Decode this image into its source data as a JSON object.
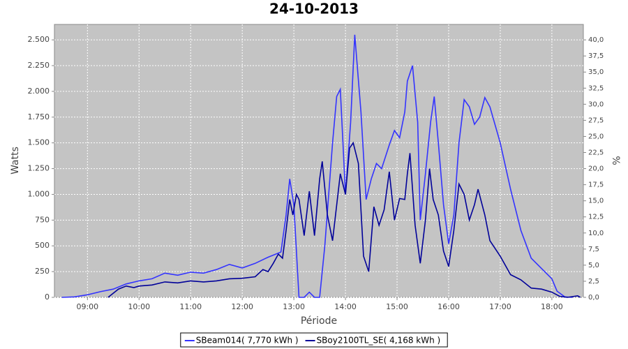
{
  "chart_data": {
    "type": "line",
    "title": "24-10-2013",
    "x_label": "Période",
    "y_label": "Watts",
    "y2_label": "%",
    "xlim": [
      8.36,
      18.61
    ],
    "xticks": [
      {
        "value": 9,
        "label": "09:00"
      },
      {
        "value": 10,
        "label": "10:00"
      },
      {
        "value": 11,
        "label": "11:00"
      },
      {
        "value": 12,
        "label": "12:00"
      },
      {
        "value": 13,
        "label": "13:00"
      },
      {
        "value": 14,
        "label": "14:00"
      },
      {
        "value": 15,
        "label": "15:00"
      },
      {
        "value": 16,
        "label": "16:00"
      },
      {
        "value": 17,
        "label": "17:00"
      },
      {
        "value": 18,
        "label": "18:00"
      }
    ],
    "ylim": [
      0,
      2650
    ],
    "yticks": [
      0,
      250,
      500,
      750,
      {
        "value": 1000,
        "label": "1.000"
      },
      {
        "value": 1250,
        "label": "1.250"
      },
      {
        "value": 1500,
        "label": "1.500"
      },
      {
        "value": 1750,
        "label": "1.750"
      },
      {
        "value": 2000,
        "label": "2.000"
      },
      {
        "value": 2250,
        "label": "2.250"
      },
      {
        "value": 2500,
        "label": "2.500"
      }
    ],
    "y2lim": [
      0,
      42.4
    ],
    "y2ticks": [
      {
        "value": 0,
        "label": "0,0"
      },
      {
        "value": 2.5,
        "label": "2,5"
      },
      {
        "value": 5,
        "label": "5,0"
      },
      {
        "value": 7.5,
        "label": "7,5"
      },
      {
        "value": 10,
        "label": "10,0"
      },
      {
        "value": 12.5,
        "label": "12,5"
      },
      {
        "value": 15,
        "label": "15,0"
      },
      {
        "value": 17.5,
        "label": "17,5"
      },
      {
        "value": 20,
        "label": "20,0"
      },
      {
        "value": 22.5,
        "label": "22,5"
      },
      {
        "value": 25,
        "label": "25,0"
      },
      {
        "value": 27.5,
        "label": "27,5"
      },
      {
        "value": 30,
        "label": "30,0"
      },
      {
        "value": 32.5,
        "label": "32,5"
      },
      {
        "value": 35,
        "label": "35,0"
      },
      {
        "value": 37.5,
        "label": "37,5"
      },
      {
        "value": 40,
        "label": "40,0"
      }
    ],
    "grid": true,
    "background": "#c4c4c4",
    "legend": "bottom",
    "series": [
      {
        "name": "SBeam014( 7,770 kWh )",
        "color": "#3333ff",
        "x": [
          8.5,
          8.75,
          9.0,
          9.25,
          9.5,
          9.75,
          10.0,
          10.25,
          10.5,
          10.75,
          11.0,
          11.25,
          11.5,
          11.75,
          12.0,
          12.25,
          12.5,
          12.75,
          12.85,
          12.92,
          13.0,
          13.1,
          13.2,
          13.3,
          13.4,
          13.5,
          13.6,
          13.75,
          13.83,
          13.9,
          14.0,
          14.1,
          14.18,
          14.3,
          14.4,
          14.5,
          14.6,
          14.7,
          14.85,
          14.95,
          15.05,
          15.15,
          15.2,
          15.3,
          15.4,
          15.45,
          15.55,
          15.65,
          15.72,
          15.8,
          15.9,
          16.0,
          16.1,
          16.2,
          16.3,
          16.4,
          16.5,
          16.6,
          16.7,
          16.8,
          17.0,
          17.2,
          17.4,
          17.6,
          17.8,
          18.0,
          18.1,
          18.25,
          18.4
        ],
        "values": [
          0,
          5,
          25,
          55,
          80,
          130,
          160,
          180,
          235,
          215,
          245,
          235,
          270,
          320,
          285,
          330,
          390,
          440,
          800,
          1150,
          900,
          0,
          0,
          50,
          0,
          0,
          500,
          1500,
          1950,
          2020,
          1000,
          1700,
          2550,
          1800,
          950,
          1150,
          1300,
          1250,
          1480,
          1620,
          1550,
          1800,
          2100,
          2250,
          1700,
          750,
          1200,
          1700,
          1950,
          1500,
          900,
          520,
          800,
          1500,
          1920,
          1850,
          1680,
          1750,
          1940,
          1850,
          1500,
          1050,
          650,
          380,
          280,
          180,
          60,
          5,
          0
        ]
      },
      {
        "name": "SBoy2100TL_SE( 4,168 kWh )",
        "color": "#000099",
        "x": [
          9.4,
          9.6,
          9.75,
          9.9,
          10.0,
          10.25,
          10.5,
          10.75,
          11.0,
          11.25,
          11.5,
          11.75,
          12.0,
          12.25,
          12.4,
          12.5,
          12.6,
          12.7,
          12.78,
          12.85,
          12.92,
          12.98,
          13.05,
          13.1,
          13.2,
          13.3,
          13.4,
          13.5,
          13.55,
          13.65,
          13.75,
          13.9,
          14.0,
          14.08,
          14.15,
          14.25,
          14.35,
          14.45,
          14.55,
          14.65,
          14.75,
          14.85,
          14.95,
          15.05,
          15.15,
          15.2,
          15.25,
          15.35,
          15.45,
          15.55,
          15.63,
          15.7,
          15.8,
          15.9,
          16.0,
          16.1,
          16.2,
          16.3,
          16.4,
          16.5,
          16.57,
          16.7,
          16.8,
          17.0,
          17.2,
          17.4,
          17.6,
          17.8,
          18.0,
          18.15,
          18.3,
          18.5,
          18.55
        ],
        "values": [
          0,
          80,
          110,
          95,
          110,
          120,
          150,
          140,
          160,
          150,
          160,
          180,
          185,
          200,
          270,
          250,
          330,
          420,
          380,
          650,
          950,
          800,
          1000,
          950,
          600,
          1030,
          600,
          1150,
          1320,
          800,
          550,
          1200,
          1000,
          1450,
          1500,
          1300,
          400,
          250,
          880,
          700,
          850,
          1220,
          750,
          960,
          950,
          1200,
          1400,
          700,
          330,
          750,
          1250,
          950,
          800,
          450,
          300,
          650,
          1100,
          1000,
          750,
          900,
          1050,
          800,
          550,
          400,
          220,
          170,
          90,
          80,
          50,
          10,
          0,
          15,
          0
        ]
      }
    ]
  }
}
